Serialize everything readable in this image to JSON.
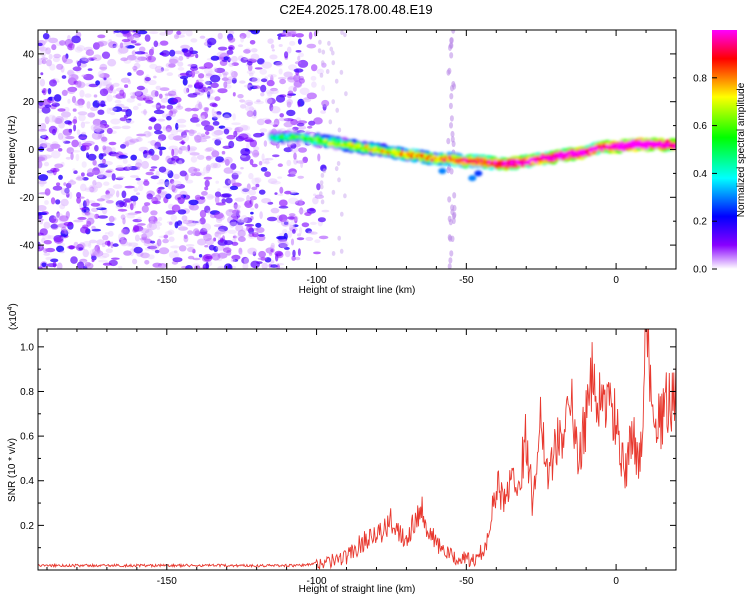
{
  "title": "C2E4.2025.178.00.48.E19",
  "chart_data": [
    {
      "type": "heatmap",
      "xlabel": "Height of straight line (km)",
      "ylabel": "Frequency (Hz)",
      "xlim": [
        -193,
        20
      ],
      "ylim": [
        -50,
        50
      ],
      "x_ticks": [
        -150,
        -100,
        -50,
        0
      ],
      "y_ticks": [
        -40,
        -20,
        0,
        20,
        40
      ],
      "colorbar": {
        "label": "Normalized spectral amplitude",
        "range": [
          0,
          1
        ],
        "ticks": [
          "0.0",
          "0.2",
          "0.4",
          "0.6",
          "0.8"
        ],
        "colors": [
          "#ffffff",
          "#8800ff",
          "#0000ff",
          "#00ffff",
          "#00ff00",
          "#ffff00",
          "#ff0000",
          "#ff00ff"
        ]
      },
      "noise_region": {
        "x": [
          -193,
          -97
        ],
        "freq": [
          -50,
          50
        ],
        "amplitude": [
          0.02,
          0.2
        ]
      },
      "vertical_stripe": {
        "x": -55,
        "freq": [
          -50,
          50
        ]
      },
      "ridge": {
        "x": [
          -115,
          -105,
          -100,
          -95,
          -90,
          -85,
          -80,
          -75,
          -70,
          -65,
          -60,
          -55,
          -50,
          -45,
          -40,
          -35,
          -30,
          -25,
          -20,
          -15,
          -10,
          -5,
          0,
          5,
          10,
          15,
          20
        ],
        "freq": [
          5,
          5,
          4,
          3,
          2,
          1,
          0,
          -1,
          -2,
          -3,
          -4,
          -4,
          -5,
          -5,
          -6,
          -6,
          -5,
          -4,
          -3,
          -2,
          -1,
          1,
          1,
          2,
          2,
          2,
          2
        ],
        "amplitude": [
          0.35,
          0.4,
          0.45,
          0.5,
          0.55,
          0.55,
          0.6,
          0.6,
          0.65,
          0.65,
          0.7,
          0.7,
          0.75,
          0.75,
          0.85,
          0.9,
          0.9,
          0.85,
          0.9,
          0.95,
          0.9,
          0.8,
          0.95,
          1.0,
          1.0,
          0.95,
          0.9
        ]
      }
    },
    {
      "type": "line",
      "xlabel": "Height of straight line (km)",
      "ylabel": "SNR (10 * v/v)",
      "y_multiplier": "(x10^4)",
      "xlim": [
        -193,
        20
      ],
      "ylim": [
        0,
        1.08
      ],
      "x_ticks": [
        -150,
        -100,
        -50,
        0
      ],
      "y_ticks": [
        0.2,
        0.4,
        0.6,
        0.8,
        1.0
      ],
      "y_tick_labels": [
        "0.2",
        "0.4",
        "0.6",
        "0.8",
        "1.0"
      ],
      "color": "#e8392f",
      "series": [
        {
          "x": [
            -193,
            -180,
            -160,
            -140,
            -120,
            -105,
            -100,
            -95,
            -90,
            -85,
            -80,
            -78,
            -75,
            -70,
            -67,
            -65,
            -62,
            -60,
            -57,
            -55,
            -52,
            -50,
            -47,
            -44,
            -42,
            -40,
            -37,
            -35,
            -33,
            -30,
            -28,
            -25,
            -23,
            -20,
            -18,
            -15,
            -13,
            -10,
            -8,
            -5,
            -3,
            0,
            3,
            5,
            8,
            10,
            12,
            15,
            17,
            20
          ],
          "y": [
            0.02,
            0.02,
            0.02,
            0.02,
            0.02,
            0.02,
            0.03,
            0.04,
            0.06,
            0.12,
            0.18,
            0.16,
            0.22,
            0.14,
            0.24,
            0.28,
            0.16,
            0.12,
            0.08,
            0.06,
            0.05,
            0.05,
            0.04,
            0.1,
            0.2,
            0.38,
            0.3,
            0.46,
            0.35,
            0.6,
            0.32,
            0.7,
            0.45,
            0.55,
            0.62,
            0.75,
            0.5,
            0.68,
            0.85,
            0.72,
            0.78,
            0.66,
            0.4,
            0.6,
            0.5,
            1.07,
            0.8,
            0.64,
            0.75,
            0.8
          ]
        }
      ]
    }
  ]
}
